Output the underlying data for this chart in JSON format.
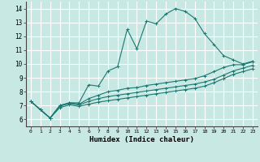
{
  "xlabel": "Humidex (Indice chaleur)",
  "background_color": "#c8e8e4",
  "grid_color": "#ffffff",
  "line_color": "#1a7870",
  "xlim": [
    -0.5,
    23.5
  ],
  "ylim": [
    5.5,
    14.5
  ],
  "xticks": [
    0,
    1,
    2,
    3,
    4,
    5,
    6,
    7,
    8,
    9,
    10,
    11,
    12,
    13,
    14,
    15,
    16,
    17,
    18,
    19,
    20,
    21,
    22,
    23
  ],
  "yticks": [
    6,
    7,
    8,
    9,
    10,
    11,
    12,
    13,
    14
  ],
  "series": [
    [
      7.3,
      6.7,
      6.1,
      7.0,
      7.2,
      7.2,
      8.5,
      8.4,
      9.5,
      9.8,
      12.5,
      11.1,
      13.1,
      12.9,
      13.6,
      14.0,
      13.8,
      13.3,
      12.2,
      11.4,
      10.6,
      10.3,
      10.0,
      10.2
    ],
    [
      7.3,
      6.7,
      6.1,
      7.0,
      7.2,
      7.1,
      7.5,
      7.75,
      8.0,
      8.1,
      8.25,
      8.3,
      8.45,
      8.55,
      8.65,
      8.75,
      8.85,
      8.95,
      9.15,
      9.45,
      9.75,
      9.95,
      9.95,
      10.15
    ],
    [
      7.3,
      6.7,
      6.1,
      6.95,
      7.15,
      7.05,
      7.3,
      7.5,
      7.65,
      7.75,
      7.85,
      7.95,
      8.05,
      8.15,
      8.25,
      8.35,
      8.45,
      8.55,
      8.7,
      8.9,
      9.2,
      9.5,
      9.7,
      9.9
    ],
    [
      7.3,
      6.7,
      6.1,
      6.85,
      7.05,
      6.95,
      7.1,
      7.25,
      7.35,
      7.45,
      7.55,
      7.65,
      7.75,
      7.85,
      7.95,
      8.05,
      8.15,
      8.25,
      8.4,
      8.65,
      8.95,
      9.25,
      9.45,
      9.65
    ]
  ]
}
